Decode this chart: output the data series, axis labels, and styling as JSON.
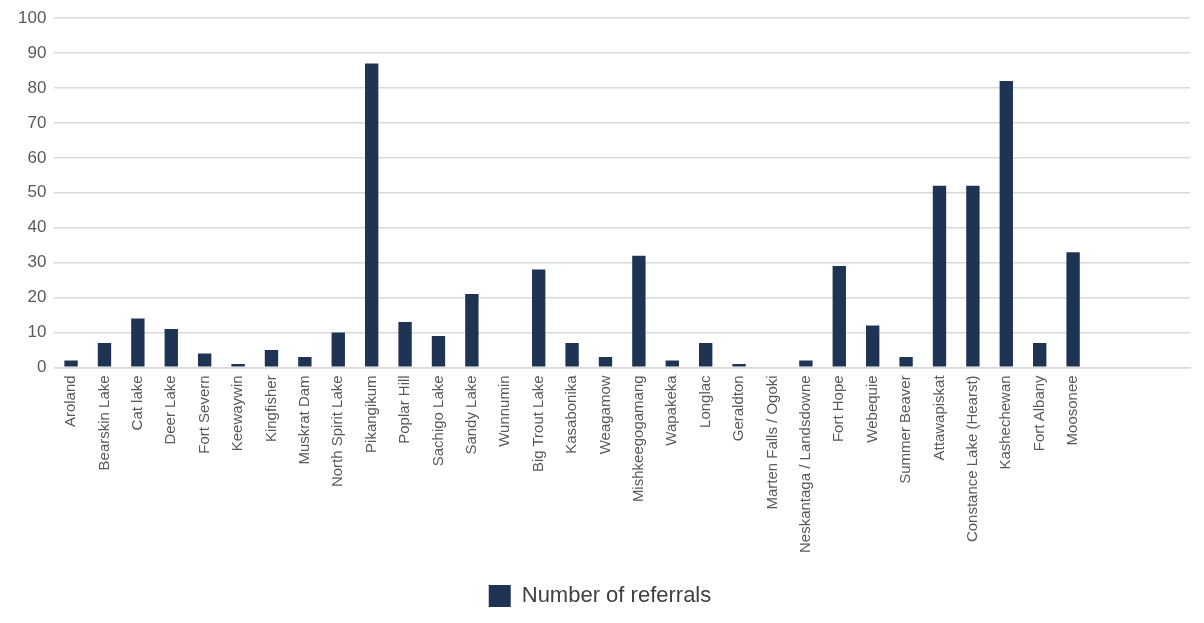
{
  "chart_data": {
    "type": "bar",
    "categories": [
      "Aroland",
      "Bearskin Lake",
      "Cat lake",
      "Deer Lake",
      "Fort Severn",
      "Keewaywin",
      "Kingfisher",
      "Muskrat Dam",
      "North Spirit Lake",
      "Pikangikum",
      "Poplar Hill",
      "Sachigo Lake",
      "Sandy Lake",
      "Wunnumin",
      "Big Trout Lake",
      "Kasabonika",
      "Weagamow",
      "Mishkeegogamang",
      "Wapakeka",
      "Longlac",
      "Geraldton",
      "Marten Falls / Ogoki",
      "Neskantaga / Landsdowne",
      "Fort Hope",
      "Webequie",
      "Summer Beaver",
      "Attawapiskat",
      "Constance Lake (Hearst)",
      "Kashechewan",
      "Fort Albany",
      "Moosonee",
      null,
      null,
      null
    ],
    "series": [
      {
        "name": "Number of referrals",
        "color": "#1f3455",
        "values": [
          2,
          7,
          14,
          11,
          4,
          1,
          5,
          3,
          10,
          87,
          13,
          9,
          21,
          0,
          28,
          7,
          3,
          32,
          2,
          7,
          1,
          0,
          2,
          29,
          12,
          3,
          52,
          52,
          82,
          7,
          33,
          null,
          null,
          null
        ]
      }
    ],
    "ylim": [
      0,
      100
    ],
    "yticks": [
      0,
      10,
      20,
      30,
      40,
      50,
      60,
      70,
      80,
      90,
      100
    ],
    "grid": "y",
    "legend": "bottom"
  }
}
